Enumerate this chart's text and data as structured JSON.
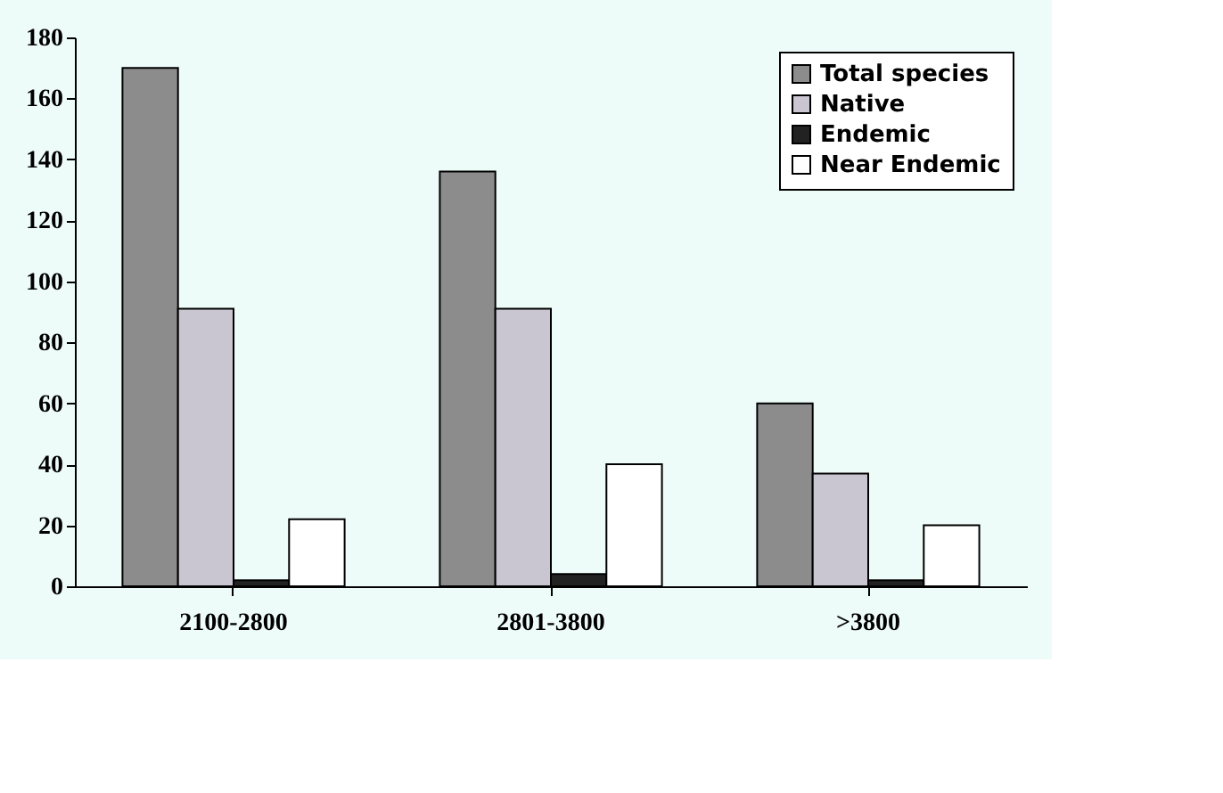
{
  "chart_data": {
    "type": "bar",
    "categories": [
      "2100-2800",
      "2801-3800",
      ">3800"
    ],
    "series": [
      {
        "name": "Total species",
        "color": "#8c8c8c",
        "values": [
          170,
          136,
          60
        ]
      },
      {
        "name": "Native",
        "color": "#c9c6d2",
        "values": [
          91,
          91,
          37
        ]
      },
      {
        "name": "Endemic",
        "color": "#222222",
        "values": [
          2,
          4,
          2
        ]
      },
      {
        "name": "Near Endemic",
        "color": "#ffffff",
        "values": [
          22,
          40,
          20
        ]
      }
    ],
    "ylim": [
      0,
      180
    ],
    "yticks": [
      0,
      20,
      40,
      60,
      80,
      100,
      120,
      140,
      160,
      180
    ],
    "grid": false,
    "legend": "top right"
  }
}
